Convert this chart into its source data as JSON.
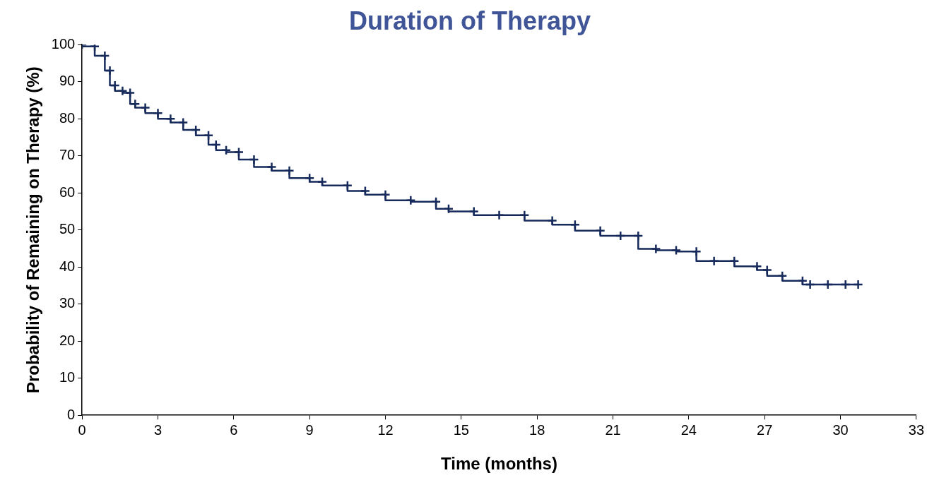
{
  "chart_data": {
    "type": "step",
    "title": "Duration of Therapy",
    "xlabel": "Time (months)",
    "ylabel": "Probability of Remaining on Therapy (%)",
    "x": [
      0,
      0.5,
      0.9,
      1.1,
      1.3,
      1.6,
      1.9,
      2.1,
      2.5,
      3,
      3.5,
      4,
      4.5,
      5,
      5.3,
      5.7,
      6.2,
      6.8,
      7.5,
      8.2,
      9,
      9.5,
      10.5,
      11.2,
      12,
      13,
      14,
      14.5,
      15.5,
      16.5,
      17.5,
      18.6,
      19.5,
      20.5,
      21.3,
      22,
      22.7,
      23.5,
      24.3,
      25,
      25.8,
      26.7,
      27.1,
      27.7,
      28.5,
      28.8,
      29.5,
      30.2,
      30.7
    ],
    "series": [
      {
        "color": "#172a5c",
        "values": [
          100,
          99.5,
          97,
          93,
          89,
          87.5,
          87,
          84,
          83,
          81.5,
          80,
          79,
          77,
          75.5,
          73,
          71.5,
          71,
          69,
          67,
          66,
          64,
          63,
          62,
          60.5,
          59.5,
          58,
          57.6,
          55.7,
          55,
          54,
          54,
          52.5,
          51.4,
          49.8,
          48.4,
          48.4,
          44.9,
          44.5,
          44.2,
          41.6,
          41.6,
          40.2,
          39.2,
          37.6,
          36.3,
          35.3,
          35.3,
          35.3,
          35.3
        ]
      }
    ],
    "xlim": [
      0,
      33
    ],
    "xticks": [
      0,
      3,
      6,
      9,
      12,
      15,
      18,
      21,
      24,
      27,
      30,
      33
    ],
    "ylim": [
      0,
      100
    ],
    "yticks": [
      0,
      10,
      20,
      30,
      40,
      50,
      60,
      70,
      80,
      90,
      100
    ],
    "grid": false,
    "legend": false,
    "marker": "cross",
    "line_style": "solid"
  }
}
